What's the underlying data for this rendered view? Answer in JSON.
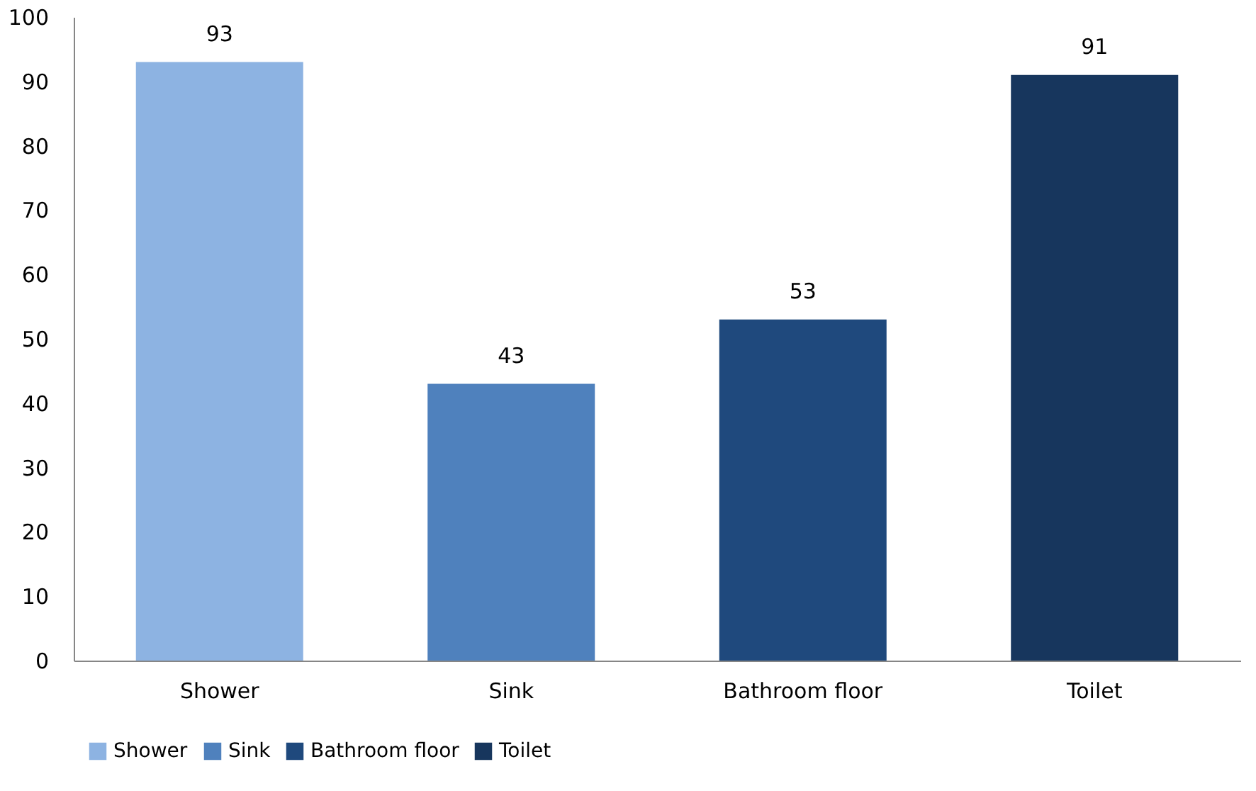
{
  "chart_data": {
    "type": "bar",
    "categories": [
      "Shower",
      "Sink",
      "Bathroom floor",
      "Toilet"
    ],
    "series": [
      {
        "name": "Shower",
        "color": "#8db3e2",
        "values": [
          93,
          null,
          null,
          null
        ]
      },
      {
        "name": "Sink",
        "color": "#4f81bd",
        "values": [
          null,
          43,
          null,
          null
        ]
      },
      {
        "name": "Bathroom floor",
        "color": "#1f497d",
        "values": [
          null,
          null,
          53,
          null
        ]
      },
      {
        "name": "Toilet",
        "color": "#17365d",
        "values": [
          null,
          null,
          null,
          91
        ]
      }
    ],
    "ylim": [
      0,
      100
    ],
    "yticks": [
      0,
      10,
      20,
      30,
      40,
      50,
      60,
      70,
      80,
      90,
      100
    ],
    "data_labels": true,
    "legend": "bottom",
    "grid": false
  }
}
